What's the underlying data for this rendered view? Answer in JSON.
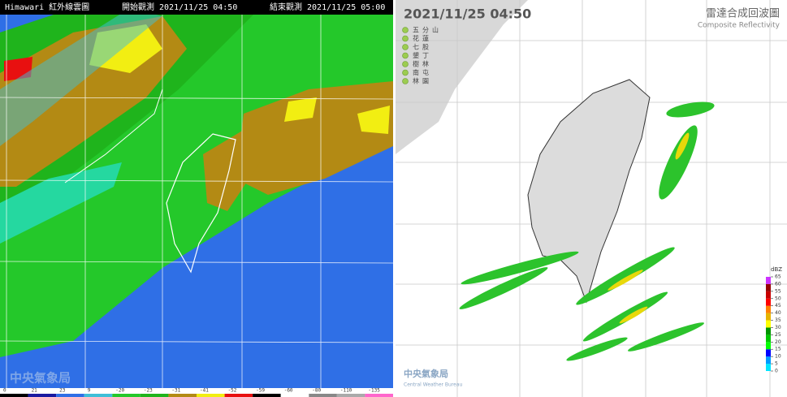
{
  "satellite": {
    "title": "Himawari 紅外線雲圖",
    "start": "開始觀測 2021/11/25 04:50",
    "end": "結束觀測 2021/11/25 05:00",
    "watermark": "中央氣象局",
    "scale_labels": [
      "0",
      "21",
      "23",
      "9",
      "-20",
      "-23",
      "-31",
      "-41",
      "-52",
      "-59",
      "-60",
      "-80",
      "-110",
      "-135"
    ]
  },
  "radar": {
    "time": "2021/11/25 04:50",
    "title": "雷達合成回波圖",
    "subtitle": "Composite Reflectivity",
    "stations": [
      "五分山",
      "花蓮",
      "七股",
      "墾丁",
      "樹林",
      "南屯",
      "林園"
    ],
    "legend": {
      "unit": "dBZ",
      "ticks": [
        0,
        5,
        10,
        15,
        20,
        25,
        30,
        35,
        40,
        45,
        50,
        55,
        60,
        65
      ],
      "colors": [
        "#00e5ff",
        "#009bff",
        "#0000ff",
        "#00ff00",
        "#00c800",
        "#009600",
        "#ffff00",
        "#e6b400",
        "#ff8000",
        "#ff0000",
        "#c80000",
        "#960000",
        "#cc33ff"
      ]
    },
    "logo": "中央氣象局",
    "logo_en": "Central Weather Bureau"
  }
}
